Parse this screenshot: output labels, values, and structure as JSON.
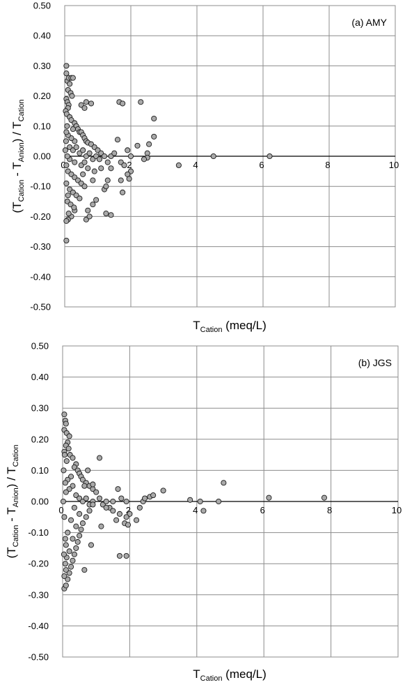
{
  "figure": {
    "panels": [
      {
        "panel_label": "(a) AMY",
        "xlabel": {
          "main": "T",
          "sub": "Cation",
          "unit": " (meq/L)"
        },
        "ylabel": {
          "open": "(T",
          "sub1": "Cation",
          "mid": " - T",
          "sub2": "Anion",
          "close": ") / T",
          "sub3": "Cation"
        },
        "x_ticks": [
          "0",
          "2",
          "4",
          "6",
          "8",
          "10"
        ],
        "y_ticks": [
          "0.50",
          "0.40",
          "0.30",
          "0.20",
          "0.10",
          "0.00",
          "-0.10",
          "-0.20",
          "-0.30",
          "-0.40",
          "-0.50"
        ]
      },
      {
        "panel_label": "(b) JGS",
        "xlabel": {
          "main": "T",
          "sub": "Cation",
          "unit": " (meq/L)"
        },
        "ylabel": {
          "open": "(T",
          "sub1": "Cation",
          "mid": " - T",
          "sub2": "Anion",
          "close": ") / T",
          "sub3": "Cation"
        },
        "x_ticks": [
          "0",
          "2",
          "4",
          "6",
          "8",
          "10"
        ],
        "y_ticks": [
          "0.50",
          "0.40",
          "0.30",
          "0.20",
          "0.10",
          "0.00",
          "-0.10",
          "-0.20",
          "-0.30",
          "-0.40",
          "-0.50"
        ]
      }
    ],
    "colors": {
      "marker_fill": "#a9a9a9",
      "marker_edge": "#1a1a1a",
      "grid": "#8c8c8c",
      "zero_line": "#000000"
    }
  },
  "chart_data": [
    {
      "type": "scatter",
      "title": "(a) AMY",
      "xlabel": "T_Cation (meq/L)",
      "ylabel": "(T_Cation - T_Anion) / T_Cation",
      "xlim": [
        0,
        10
      ],
      "ylim": [
        -0.5,
        0.5
      ],
      "grid": true,
      "series": [
        {
          "points": [
            [
              0.05,
              0.3
            ],
            [
              0.05,
              0.275
            ],
            [
              0.08,
              0.25
            ],
            [
              0.12,
              0.26
            ],
            [
              0.2,
              0.26
            ],
            [
              0.25,
              0.26
            ],
            [
              0.15,
              0.24
            ],
            [
              0.1,
              0.22
            ],
            [
              0.18,
              0.21
            ],
            [
              0.22,
              0.2
            ],
            [
              0.05,
              0.19
            ],
            [
              0.08,
              0.18
            ],
            [
              0.12,
              0.17
            ],
            [
              0.1,
              0.16
            ],
            [
              0.03,
              0.15
            ],
            [
              0.06,
              0.14
            ],
            [
              0.15,
              0.13
            ],
            [
              0.2,
              0.12
            ],
            [
              0.3,
              0.11
            ],
            [
              0.35,
              0.1
            ],
            [
              0.25,
              0.09
            ],
            [
              0.4,
              0.09
            ],
            [
              0.45,
              0.08
            ],
            [
              0.5,
              0.08
            ],
            [
              0.55,
              0.07
            ],
            [
              0.6,
              0.06
            ],
            [
              0.65,
              0.05
            ],
            [
              0.7,
              0.045
            ],
            [
              0.8,
              0.04
            ],
            [
              0.9,
              0.03
            ],
            [
              1.0,
              0.02
            ],
            [
              1.1,
              0.01
            ],
            [
              0.3,
              0.05
            ],
            [
              0.2,
              0.06
            ],
            [
              0.1,
              0.07
            ],
            [
              0.05,
              0.08
            ],
            [
              0.15,
              0.03
            ],
            [
              0.25,
              0.02
            ],
            [
              0.35,
              0.03
            ],
            [
              0.45,
              0.01
            ],
            [
              0.55,
              0.02
            ],
            [
              0.65,
              0.0
            ],
            [
              0.75,
              0.01
            ],
            [
              0.85,
              -0.01
            ],
            [
              0.95,
              0.0
            ],
            [
              1.05,
              -0.01
            ],
            [
              1.2,
              0.0
            ],
            [
              1.3,
              -0.02
            ],
            [
              1.4,
              0.0
            ],
            [
              1.5,
              0.01
            ],
            [
              0.65,
              0.18
            ],
            [
              0.8,
              0.175
            ],
            [
              0.5,
              0.17
            ],
            [
              0.6,
              0.16
            ],
            [
              1.65,
              0.18
            ],
            [
              1.75,
              0.175
            ],
            [
              2.3,
              0.18
            ],
            [
              2.7,
              0.125
            ],
            [
              2.7,
              0.065
            ],
            [
              2.55,
              0.04
            ],
            [
              2.2,
              0.035
            ],
            [
              1.6,
              0.055
            ],
            [
              1.9,
              0.02
            ],
            [
              2.0,
              0.0
            ],
            [
              2.5,
              0.01
            ],
            [
              2.5,
              -0.005
            ],
            [
              2.4,
              -0.01
            ],
            [
              1.7,
              -0.02
            ],
            [
              1.8,
              -0.03
            ],
            [
              2.0,
              -0.05
            ],
            [
              1.9,
              -0.06
            ],
            [
              1.95,
              -0.075
            ],
            [
              1.7,
              -0.08
            ],
            [
              1.75,
              -0.12
            ],
            [
              1.3,
              -0.08
            ],
            [
              1.2,
              -0.11
            ],
            [
              1.25,
              -0.1
            ],
            [
              0.95,
              -0.145
            ],
            [
              0.85,
              -0.16
            ],
            [
              0.7,
              -0.18
            ],
            [
              0.65,
              -0.21
            ],
            [
              1.25,
              -0.19
            ],
            [
              1.4,
              -0.195
            ],
            [
              0.75,
              -0.2
            ],
            [
              0.3,
              -0.18
            ],
            [
              0.2,
              -0.2
            ],
            [
              0.1,
              -0.21
            ],
            [
              0.05,
              -0.215
            ],
            [
              0.12,
              -0.19
            ],
            [
              0.05,
              -0.28
            ],
            [
              3.45,
              -0.03
            ],
            [
              4.5,
              0.0
            ],
            [
              6.2,
              0.0
            ],
            [
              0.1,
              -0.05
            ],
            [
              0.2,
              -0.06
            ],
            [
              0.3,
              -0.07
            ],
            [
              0.4,
              -0.08
            ],
            [
              0.5,
              -0.09
            ],
            [
              0.6,
              -0.1
            ],
            [
              0.15,
              -0.11
            ],
            [
              0.25,
              -0.12
            ],
            [
              0.35,
              -0.13
            ],
            [
              0.45,
              -0.14
            ],
            [
              0.08,
              -0.15
            ],
            [
              0.18,
              -0.16
            ],
            [
              0.28,
              -0.17
            ],
            [
              0.05,
              -0.09
            ],
            [
              0.1,
              -0.13
            ],
            [
              0.5,
              -0.03
            ],
            [
              0.7,
              -0.04
            ],
            [
              0.9,
              -0.05
            ],
            [
              1.1,
              -0.04
            ],
            [
              1.4,
              -0.04
            ],
            [
              0.55,
              -0.06
            ],
            [
              0.85,
              -0.08
            ],
            [
              0.6,
              -0.02
            ],
            [
              0.3,
              -0.02
            ],
            [
              0.15,
              -0.01
            ],
            [
              0.05,
              -0.03
            ],
            [
              0.08,
              0.0
            ],
            [
              0.02,
              0.02
            ],
            [
              0.04,
              0.05
            ],
            [
              0.07,
              0.1
            ]
          ]
        }
      ]
    },
    {
      "type": "scatter",
      "title": "(b) JGS",
      "xlabel": "T_Cation (meq/L)",
      "ylabel": "(T_Cation - T_Anion) / T_Cation",
      "xlim": [
        0,
        10
      ],
      "ylim": [
        -0.5,
        0.5
      ],
      "grid": true,
      "series": [
        {
          "points": [
            [
              0.05,
              0.28
            ],
            [
              0.08,
              0.26
            ],
            [
              0.1,
              0.25
            ],
            [
              0.05,
              0.23
            ],
            [
              0.12,
              0.22
            ],
            [
              0.2,
              0.21
            ],
            [
              0.15,
              0.19
            ],
            [
              0.1,
              0.18
            ],
            [
              0.18,
              0.17
            ],
            [
              0.05,
              0.16
            ],
            [
              0.22,
              0.15
            ],
            [
              0.3,
              0.14
            ],
            [
              0.12,
              0.13
            ],
            [
              0.4,
              0.12
            ],
            [
              0.35,
              0.11
            ],
            [
              0.45,
              0.1
            ],
            [
              0.5,
              0.09
            ],
            [
              0.55,
              0.08
            ],
            [
              0.6,
              0.07
            ],
            [
              0.7,
              0.06
            ],
            [
              0.8,
              0.05
            ],
            [
              0.9,
              0.04
            ],
            [
              1.0,
              0.03
            ],
            [
              0.25,
              0.08
            ],
            [
              0.15,
              0.07
            ],
            [
              0.08,
              0.06
            ],
            [
              0.3,
              0.05
            ],
            [
              0.2,
              0.04
            ],
            [
              0.1,
              0.03
            ],
            [
              0.4,
              0.02
            ],
            [
              0.5,
              0.01
            ],
            [
              0.6,
              0.0
            ],
            [
              0.7,
              0.01
            ],
            [
              0.8,
              -0.01
            ],
            [
              0.9,
              0.0
            ],
            [
              1.1,
              0.01
            ],
            [
              1.2,
              -0.01
            ],
            [
              1.3,
              0.0
            ],
            [
              1.4,
              -0.02
            ],
            [
              1.5,
              0.0
            ],
            [
              1.1,
              0.14
            ],
            [
              0.75,
              0.1
            ],
            [
              0.9,
              0.055
            ],
            [
              0.65,
              0.05
            ],
            [
              1.65,
              0.04
            ],
            [
              1.75,
              0.01
            ],
            [
              1.9,
              0.0
            ],
            [
              2.0,
              -0.04
            ],
            [
              1.9,
              -0.05
            ],
            [
              1.85,
              -0.07
            ],
            [
              1.95,
              -0.075
            ],
            [
              1.6,
              -0.06
            ],
            [
              1.7,
              -0.04
            ],
            [
              1.5,
              -0.03
            ],
            [
              1.3,
              -0.02
            ],
            [
              1.15,
              -0.08
            ],
            [
              0.85,
              -0.14
            ],
            [
              0.65,
              -0.22
            ],
            [
              1.7,
              -0.175
            ],
            [
              1.9,
              -0.175
            ],
            [
              2.2,
              -0.06
            ],
            [
              2.3,
              -0.02
            ],
            [
              2.4,
              0.0
            ],
            [
              2.45,
              0.01
            ],
            [
              2.6,
              0.015
            ],
            [
              3.0,
              0.035
            ],
            [
              2.7,
              0.02
            ],
            [
              3.8,
              0.005
            ],
            [
              4.1,
              0.0
            ],
            [
              4.2,
              -0.03
            ],
            [
              4.65,
              0.0
            ],
            [
              4.8,
              0.06
            ],
            [
              6.15,
              0.012
            ],
            [
              7.8,
              0.012
            ],
            [
              0.05,
              -0.28
            ],
            [
              0.1,
              -0.27
            ],
            [
              0.15,
              -0.25
            ],
            [
              0.05,
              -0.24
            ],
            [
              0.2,
              -0.23
            ],
            [
              0.1,
              -0.22
            ],
            [
              0.25,
              -0.21
            ],
            [
              0.08,
              -0.2
            ],
            [
              0.3,
              -0.19
            ],
            [
              0.12,
              -0.18
            ],
            [
              0.35,
              -0.17
            ],
            [
              0.2,
              -0.16
            ],
            [
              0.4,
              -0.15
            ],
            [
              0.1,
              -0.14
            ],
            [
              0.45,
              -0.13
            ],
            [
              0.3,
              -0.12
            ],
            [
              0.5,
              -0.11
            ],
            [
              0.15,
              -0.1
            ],
            [
              0.55,
              -0.09
            ],
            [
              0.4,
              -0.08
            ],
            [
              0.6,
              -0.07
            ],
            [
              0.25,
              -0.06
            ],
            [
              0.7,
              -0.05
            ],
            [
              0.5,
              -0.04
            ],
            [
              0.8,
              -0.03
            ],
            [
              0.35,
              -0.02
            ],
            [
              0.9,
              -0.01
            ],
            [
              0.05,
              -0.05
            ],
            [
              0.08,
              -0.12
            ],
            [
              0.03,
              0.1
            ],
            [
              0.02,
              0.0
            ],
            [
              0.06,
              0.15
            ],
            [
              0.04,
              -0.17
            ]
          ]
        }
      ]
    }
  ]
}
